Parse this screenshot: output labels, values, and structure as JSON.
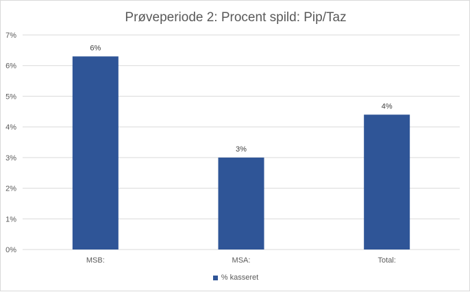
{
  "chart_data": {
    "type": "bar",
    "title": "Prøveperiode 2: Procent spild: Pip/Taz",
    "categories": [
      "MSB:",
      "MSA:",
      "Total:"
    ],
    "series": [
      {
        "name": "% kasseret",
        "values": [
          0.063,
          0.03,
          0.044
        ],
        "labels": [
          "6%",
          "3%",
          "4%"
        ]
      }
    ],
    "ylim": [
      0,
      0.07
    ],
    "yticks": [
      0,
      0.01,
      0.02,
      0.03,
      0.04,
      0.05,
      0.06,
      0.07
    ],
    "ytick_labels": [
      "0%",
      "1%",
      "2%",
      "3%",
      "4%",
      "5%",
      "6%",
      "7%"
    ],
    "grid": true,
    "legend_position": "bottom",
    "colors": {
      "bar": "#2F5597",
      "grid": "#d9d9d9",
      "text": "#595959"
    }
  }
}
